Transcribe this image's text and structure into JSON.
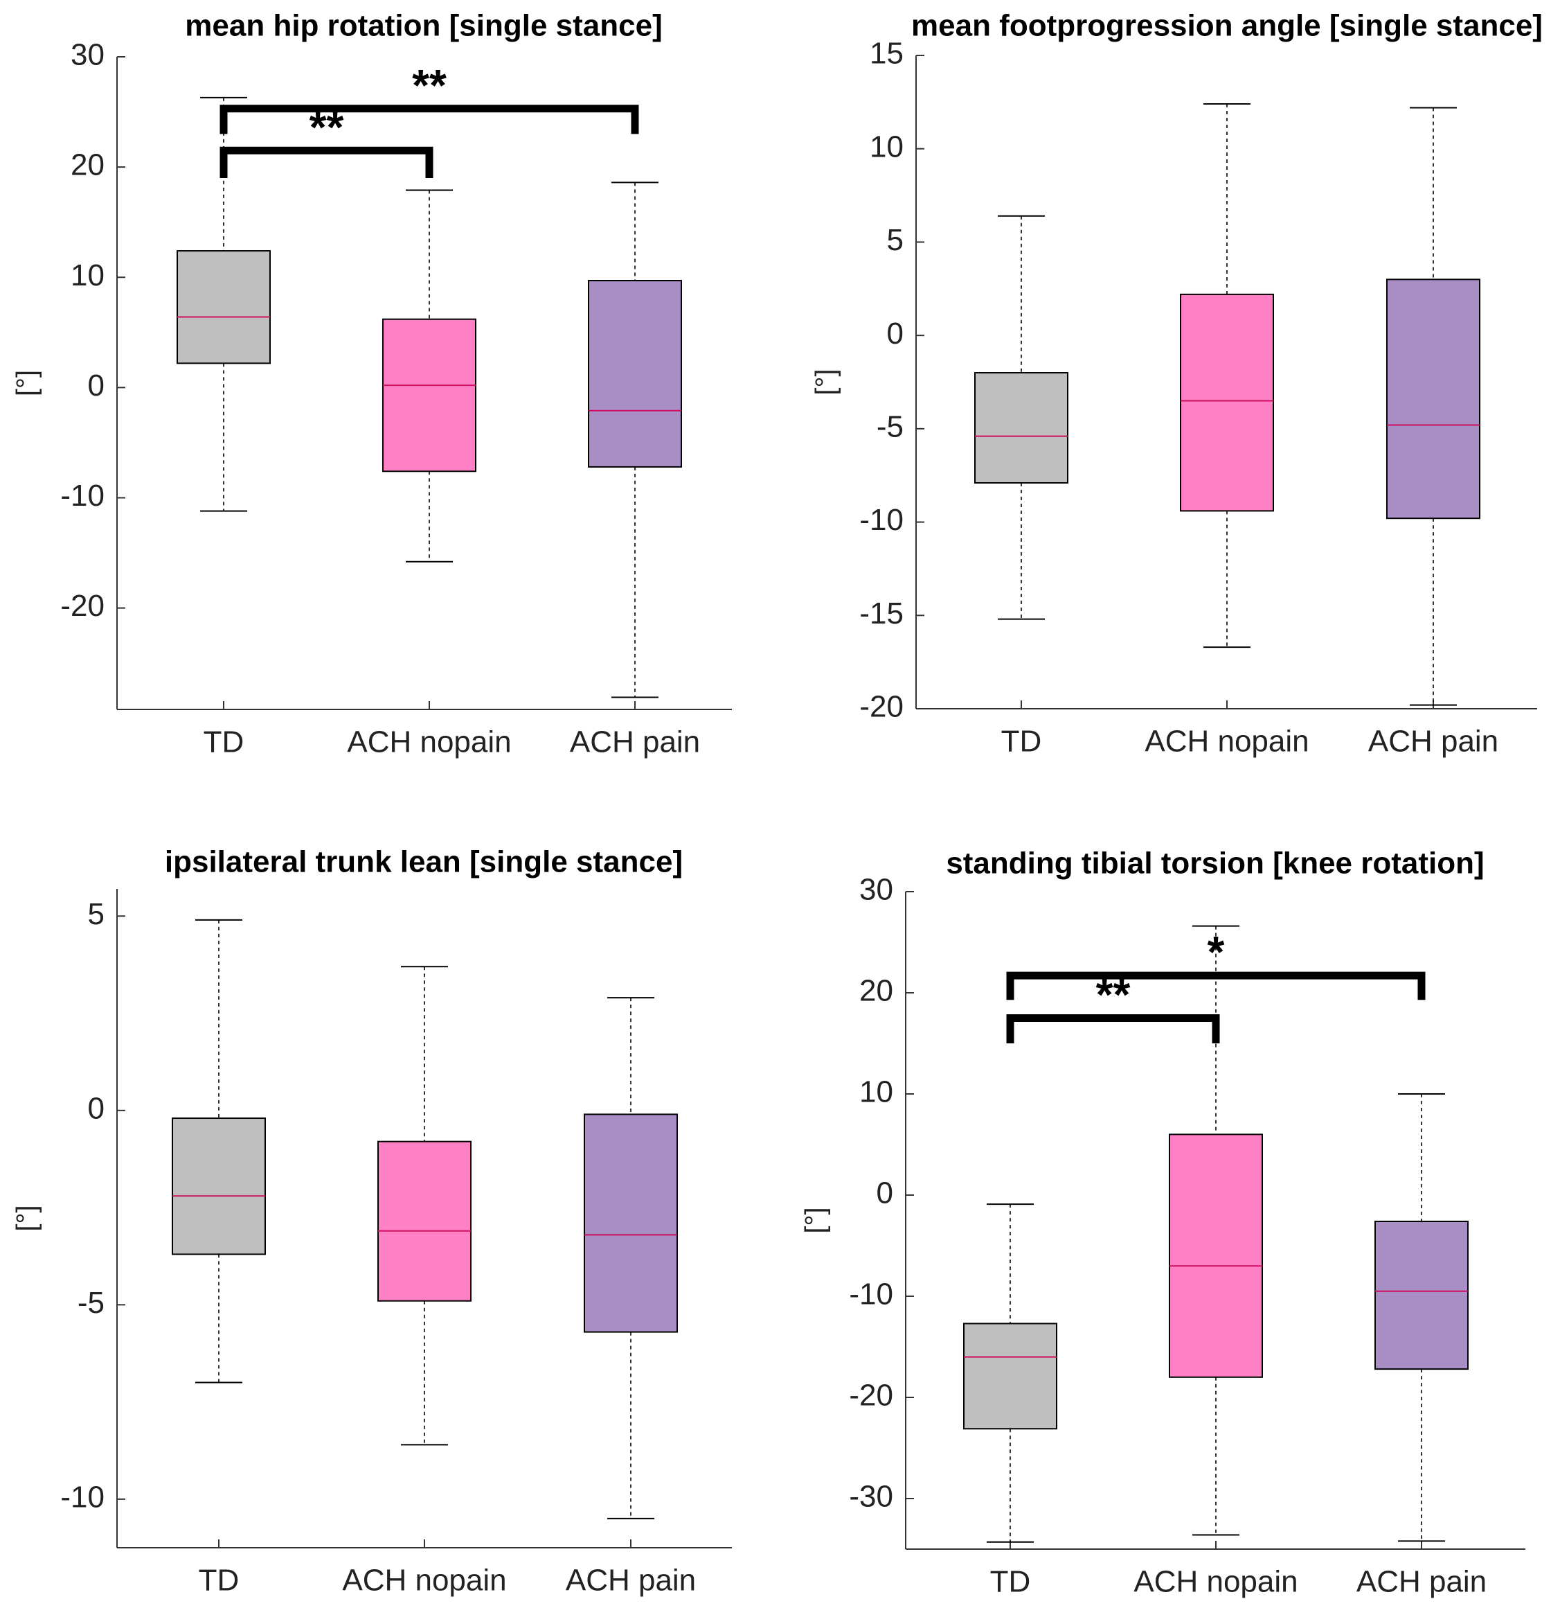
{
  "colors": {
    "TD": "#bfbfbf",
    "ACH nopain": "#ff80c5",
    "ACH pain": "#a98dc5",
    "median": "#cc1060",
    "axis": "#333333",
    "bracket": "#000000"
  },
  "chart_data": [
    {
      "type": "box",
      "title": "mean hip rotation [single stance]",
      "xlabel": "",
      "ylabel": "[°]",
      "categories": [
        "TD",
        "ACH nopain",
        "ACH pain"
      ],
      "ylim": [
        -29.2,
        30
      ],
      "yticks": [
        -20,
        -10,
        0,
        10,
        20,
        30
      ],
      "boxes": [
        {
          "category": "TD",
          "whisker_low": -11.2,
          "q1": 2.2,
          "median": 6.4,
          "q3": 12.4,
          "whisker_high": 26.3
        },
        {
          "category": "ACH nopain",
          "whisker_low": -15.8,
          "q1": -7.6,
          "median": 0.2,
          "q3": 6.2,
          "whisker_high": 17.9
        },
        {
          "category": "ACH pain",
          "whisker_low": -28.1,
          "q1": -7.2,
          "median": -2.1,
          "q3": 9.7,
          "whisker_high": 18.6
        }
      ],
      "significance": [
        {
          "from": "TD",
          "to": "ACH nopain",
          "label": "**",
          "y": 21.5,
          "leg_bottom": 19.0
        },
        {
          "from": "TD",
          "to": "ACH pain",
          "label": "**",
          "y": 25.3,
          "leg_bottom": 23.0
        }
      ]
    },
    {
      "type": "box",
      "title": "mean footprogression angle [single stance]",
      "xlabel": "",
      "ylabel": "[°]",
      "categories": [
        "TD",
        "ACH nopain",
        "ACH pain"
      ],
      "ylim": [
        -20,
        15
      ],
      "yticks": [
        -20,
        -15,
        -10,
        -5,
        0,
        5,
        10,
        15
      ],
      "boxes": [
        {
          "category": "TD",
          "whisker_low": -15.2,
          "q1": -7.9,
          "median": -5.4,
          "q3": -2.0,
          "whisker_high": 6.4
        },
        {
          "category": "ACH nopain",
          "whisker_low": -16.7,
          "q1": -9.4,
          "median": -3.5,
          "q3": 2.2,
          "whisker_high": 12.4
        },
        {
          "category": "ACH pain",
          "whisker_low": -19.8,
          "q1": -9.8,
          "median": -4.8,
          "q3": 3.0,
          "whisker_high": 12.2
        }
      ],
      "significance": []
    },
    {
      "type": "box",
      "title": "ipsilateral trunk lean  [single stance]",
      "xlabel": "",
      "ylabel": "[°]",
      "categories": [
        "TD",
        "ACH nopain",
        "ACH pain"
      ],
      "ylim": [
        -11.25,
        5.7
      ],
      "yticks": [
        -10,
        -5,
        0,
        5
      ],
      "boxes": [
        {
          "category": "TD",
          "whisker_low": -7.0,
          "q1": -3.7,
          "median": -2.2,
          "q3": -0.2,
          "whisker_high": 4.9
        },
        {
          "category": "ACH nopain",
          "whisker_low": -8.6,
          "q1": -4.9,
          "median": -3.1,
          "q3": -0.8,
          "whisker_high": 3.7
        },
        {
          "category": "ACH pain",
          "whisker_low": -10.5,
          "q1": -5.7,
          "median": -3.2,
          "q3": -0.1,
          "whisker_high": 2.9
        }
      ],
      "significance": []
    },
    {
      "type": "box",
      "title": "standing tibial torsion [knee rotation]",
      "xlabel": "",
      "ylabel": "[°]",
      "categories": [
        "TD",
        "ACH nopain",
        "ACH pain"
      ],
      "ylim": [
        -35,
        30
      ],
      "yticks": [
        -30,
        -20,
        -10,
        0,
        10,
        20,
        30
      ],
      "boxes": [
        {
          "category": "TD",
          "whisker_low": -34.3,
          "q1": -23.1,
          "median": -16.0,
          "q3": -12.7,
          "whisker_high": -0.9
        },
        {
          "category": "ACH nopain",
          "whisker_low": -33.6,
          "q1": -18.0,
          "median": -7.0,
          "q3": 6.0,
          "whisker_high": 26.6
        },
        {
          "category": "ACH pain",
          "whisker_low": -34.2,
          "q1": -17.2,
          "median": -9.5,
          "q3": -2.6,
          "whisker_high": 10.0
        }
      ],
      "significance": [
        {
          "from": "TD",
          "to": "ACH nopain",
          "label": "**",
          "y": 17.5,
          "leg_bottom": 15.0
        },
        {
          "from": "TD",
          "to": "ACH pain",
          "label": "*",
          "y": 21.7,
          "leg_bottom": 19.3
        }
      ]
    }
  ]
}
